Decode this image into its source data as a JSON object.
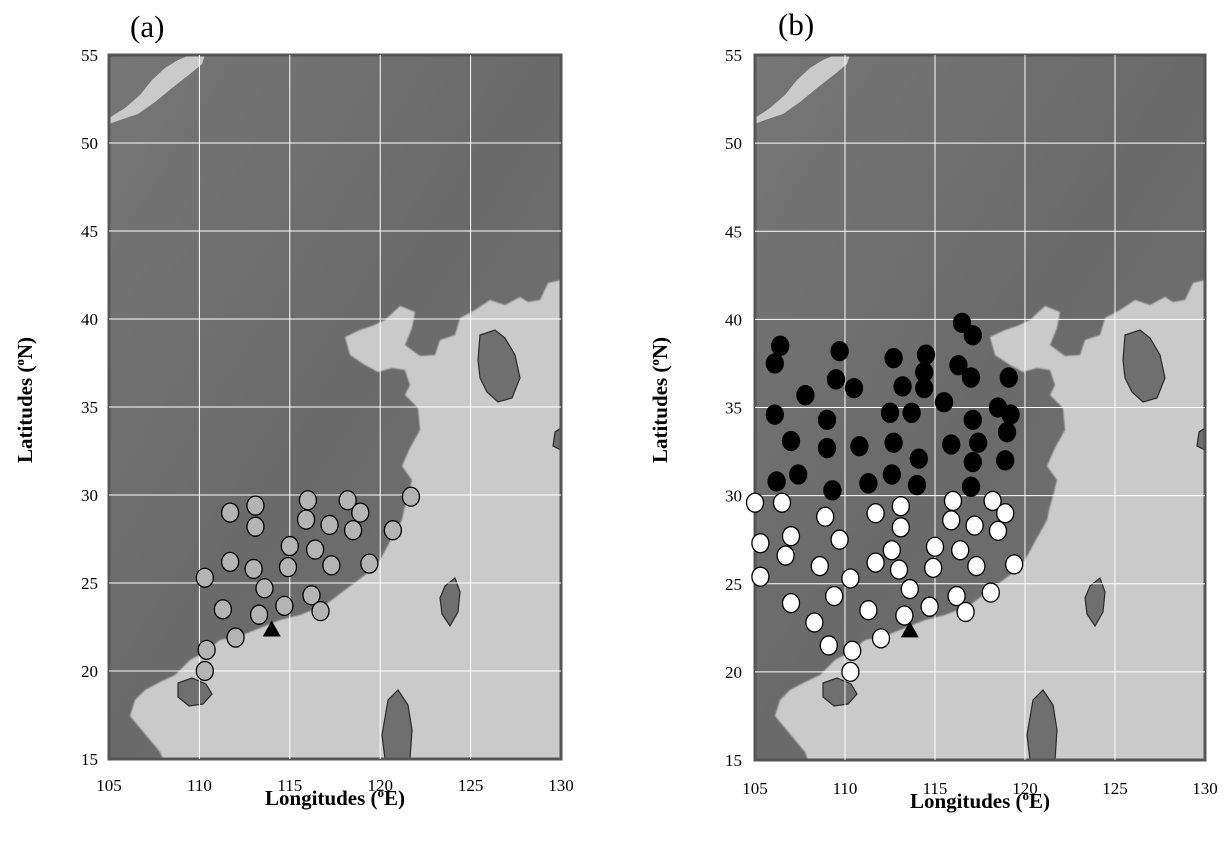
{
  "panels": [
    {
      "label": "(a)",
      "xlabel": {
        "pre": "Longitudes (",
        "sup": "o",
        "post": "E)"
      },
      "ylabel": {
        "pre": "Latitudes (",
        "sup": "o",
        "post": "N)"
      },
      "x_ticks": [
        "105",
        "110",
        "115",
        "120",
        "125",
        "130"
      ],
      "y_ticks": [
        "15",
        "20",
        "25",
        "30",
        "35",
        "40",
        "45",
        "50",
        "55"
      ],
      "xlim": [
        105,
        130
      ],
      "ylim": [
        15,
        55
      ],
      "gray_stations": [
        [
          111.7,
          29.0
        ],
        [
          113.1,
          29.4
        ],
        [
          113.1,
          28.2
        ],
        [
          116.0,
          29.7
        ],
        [
          118.2,
          29.7
        ],
        [
          121.7,
          29.9
        ],
        [
          115.9,
          28.6
        ],
        [
          117.2,
          28.3
        ],
        [
          118.9,
          29.0
        ],
        [
          118.5,
          28.0
        ],
        [
          120.7,
          28.0
        ],
        [
          111.7,
          26.2
        ],
        [
          113.0,
          25.8
        ],
        [
          115.0,
          27.1
        ],
        [
          116.4,
          26.9
        ],
        [
          117.3,
          26.0
        ],
        [
          119.4,
          26.1
        ],
        [
          114.9,
          25.9
        ],
        [
          110.3,
          25.3
        ],
        [
          113.6,
          24.7
        ],
        [
          116.2,
          24.3
        ],
        [
          111.3,
          23.5
        ],
        [
          113.3,
          23.2
        ],
        [
          114.7,
          23.7
        ],
        [
          116.7,
          23.4
        ],
        [
          110.4,
          21.2
        ],
        [
          112.0,
          21.9
        ],
        [
          110.3,
          20.0
        ]
      ],
      "triangle": [
        114.0,
        22.3
      ]
    },
    {
      "label": "(b)",
      "xlabel": {
        "pre": "Longitudes (",
        "sup": "o",
        "post": "E)"
      },
      "ylabel": {
        "pre": "Latitudes (",
        "sup": "o",
        "post": "N)"
      },
      "x_ticks": [
        "105",
        "110",
        "115",
        "120",
        "125",
        "130"
      ],
      "y_ticks": [
        "15",
        "20",
        "25",
        "30",
        "35",
        "40",
        "45",
        "50",
        "55"
      ],
      "xlim": [
        105,
        130
      ],
      "ylim": [
        15,
        55
      ],
      "black_stations": [
        [
          106.1,
          37.5
        ],
        [
          106.4,
          38.5
        ],
        [
          107.8,
          35.7
        ],
        [
          109.5,
          36.6
        ],
        [
          109.7,
          38.2
        ],
        [
          110.5,
          36.1
        ],
        [
          112.7,
          37.8
        ],
        [
          113.2,
          36.2
        ],
        [
          114.4,
          37.0
        ],
        [
          114.5,
          38.0
        ],
        [
          116.3,
          37.4
        ],
        [
          116.5,
          39.8
        ],
        [
          117.1,
          39.1
        ],
        [
          117.0,
          36.7
        ],
        [
          119.1,
          36.7
        ],
        [
          106.1,
          34.6
        ],
        [
          109.0,
          34.3
        ],
        [
          112.5,
          34.7
        ],
        [
          113.7,
          34.7
        ],
        [
          114.4,
          36.1
        ],
        [
          115.5,
          35.3
        ],
        [
          117.1,
          34.3
        ],
        [
          118.5,
          35.0
        ],
        [
          119.2,
          34.6
        ],
        [
          107.0,
          33.1
        ],
        [
          109.0,
          32.7
        ],
        [
          110.8,
          32.8
        ],
        [
          112.7,
          33.0
        ],
        [
          115.9,
          32.9
        ],
        [
          117.4,
          33.0
        ],
        [
          119.0,
          33.6
        ],
        [
          106.2,
          30.8
        ],
        [
          107.4,
          31.2
        ],
        [
          109.3,
          30.3
        ],
        [
          111.3,
          30.7
        ],
        [
          112.6,
          31.2
        ],
        [
          114.0,
          30.6
        ],
        [
          114.1,
          32.1
        ],
        [
          117.1,
          31.9
        ],
        [
          117.0,
          30.5
        ],
        [
          118.9,
          32.0
        ]
      ],
      "white_stations": [
        [
          105.0,
          29.6
        ],
        [
          106.5,
          29.6
        ],
        [
          105.3,
          27.3
        ],
        [
          107.0,
          27.7
        ],
        [
          106.7,
          26.6
        ],
        [
          105.3,
          25.4
        ],
        [
          108.9,
          28.8
        ],
        [
          111.7,
          29.0
        ],
        [
          113.1,
          29.4
        ],
        [
          113.1,
          28.2
        ],
        [
          116.0,
          29.7
        ],
        [
          118.2,
          29.7
        ],
        [
          115.9,
          28.6
        ],
        [
          117.2,
          28.3
        ],
        [
          118.9,
          29.0
        ],
        [
          118.5,
          28.0
        ],
        [
          109.7,
          27.5
        ],
        [
          108.6,
          26.0
        ],
        [
          110.3,
          25.3
        ],
        [
          111.7,
          26.2
        ],
        [
          112.6,
          26.9
        ],
        [
          113.0,
          25.8
        ],
        [
          115.0,
          27.1
        ],
        [
          116.4,
          26.9
        ],
        [
          117.3,
          26.0
        ],
        [
          119.4,
          26.1
        ],
        [
          114.9,
          25.9
        ],
        [
          107.0,
          23.9
        ],
        [
          109.4,
          24.3
        ],
        [
          113.6,
          24.7
        ],
        [
          116.2,
          24.3
        ],
        [
          118.1,
          24.5
        ],
        [
          108.3,
          22.8
        ],
        [
          111.3,
          23.5
        ],
        [
          113.3,
          23.2
        ],
        [
          114.7,
          23.7
        ],
        [
          116.7,
          23.4
        ],
        [
          109.1,
          21.5
        ],
        [
          110.4,
          21.2
        ],
        [
          112.0,
          21.9
        ],
        [
          110.3,
          20.0
        ]
      ],
      "triangle": [
        113.6,
        22.3
      ]
    }
  ],
  "colors": {
    "land": "#6f6f6f",
    "sea": "#cacaca",
    "grid": "#ffffff",
    "gray_marker": "#b4b4b4",
    "black_marker": "#000000",
    "white_marker": "#ffffff",
    "triangle": "#000000"
  }
}
